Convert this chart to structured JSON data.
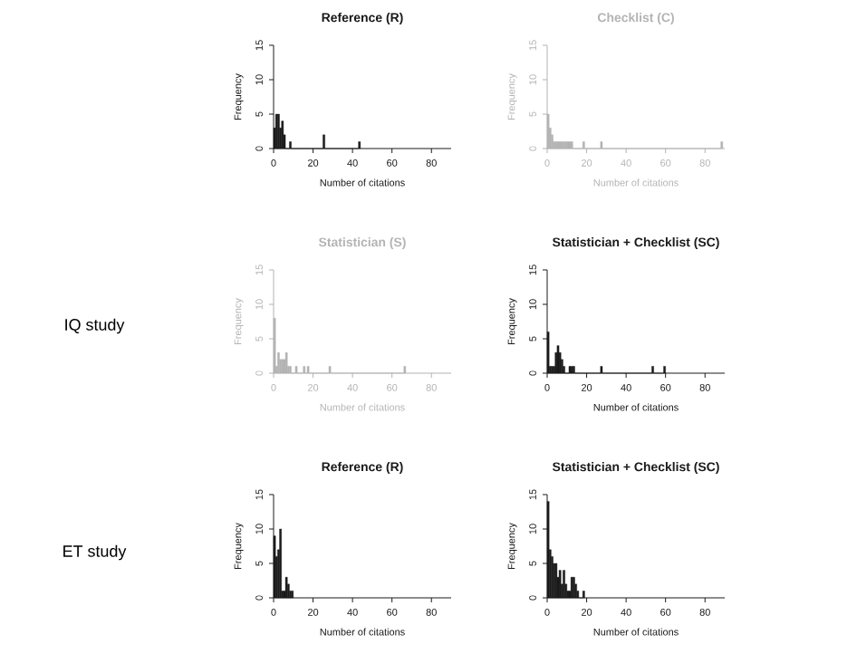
{
  "chart_data": [
    {
      "type": "histogram",
      "title": "Reference (R)",
      "xlabel": "Number of citations",
      "ylabel": "Frequency",
      "color": "#1a1a1a",
      "xlim": [
        0,
        90
      ],
      "xticks": [
        0,
        20,
        40,
        60,
        80
      ],
      "ylim": [
        0,
        15
      ],
      "yticks": [
        0,
        5,
        10,
        15
      ],
      "annotations": [
        "IQ study"
      ],
      "bins": [
        0,
        1,
        2,
        3,
        4,
        5,
        6,
        7,
        8,
        9,
        10,
        11,
        12,
        13,
        14,
        15,
        16,
        17,
        18,
        19,
        20,
        21,
        22,
        23,
        24,
        25,
        26,
        27,
        28,
        29,
        30,
        31,
        32,
        33,
        34,
        35,
        36,
        37,
        38,
        39,
        40,
        41,
        42,
        43,
        44
      ],
      "values": [
        3,
        5,
        5,
        3,
        4,
        2,
        0,
        0,
        1,
        0,
        0,
        0,
        0,
        0,
        0,
        0,
        0,
        0,
        0,
        0,
        0,
        0,
        0,
        0,
        0,
        2,
        0,
        0,
        0,
        0,
        0,
        0,
        0,
        0,
        0,
        0,
        0,
        0,
        0,
        0,
        0,
        0,
        0,
        1
      ]
    },
    {
      "type": "histogram",
      "title": "Checklist (C)",
      "xlabel": "Number of citations",
      "ylabel": "Frequency",
      "color": "#b3b3b3",
      "xlim": [
        0,
        90
      ],
      "xticks": [
        0,
        20,
        40,
        60,
        80
      ],
      "ylim": [
        0,
        15
      ],
      "yticks": [
        0,
        5,
        10,
        15
      ],
      "bins": [
        0,
        1,
        2,
        3,
        4,
        5,
        6,
        7,
        8,
        9,
        10,
        11,
        12,
        13,
        14,
        15,
        16,
        17,
        18,
        19,
        20,
        21,
        22,
        23,
        24,
        25,
        26,
        27,
        28,
        29,
        30,
        31,
        32,
        33,
        34,
        35,
        36,
        37,
        38,
        39,
        40,
        41,
        42,
        43,
        44,
        45,
        46,
        47,
        48,
        49,
        50,
        51,
        52,
        53,
        54,
        55,
        56,
        57,
        58,
        59,
        60,
        61,
        62,
        63,
        64,
        65,
        66,
        67,
        68,
        69,
        70,
        71,
        72,
        73,
        74,
        75,
        76,
        77,
        78,
        79,
        80,
        81,
        82,
        83,
        84,
        85,
        86,
        87,
        88,
        89
      ],
      "values": [
        5,
        3,
        2,
        1,
        1,
        1,
        1,
        1,
        1,
        1,
        1,
        1,
        1,
        0,
        0,
        0,
        0,
        0,
        1,
        0,
        0,
        0,
        0,
        0,
        0,
        0,
        0,
        1,
        0,
        0,
        0,
        0,
        0,
        0,
        0,
        0,
        0,
        0,
        0,
        0,
        0,
        0,
        0,
        0,
        0,
        0,
        0,
        0,
        0,
        0,
        0,
        0,
        0,
        0,
        0,
        0,
        0,
        0,
        0,
        0,
        0,
        0,
        0,
        0,
        0,
        0,
        0,
        0,
        0,
        0,
        0,
        0,
        0,
        0,
        0,
        0,
        0,
        0,
        0,
        0,
        0,
        0,
        0,
        0,
        0,
        0,
        0,
        0,
        1
      ]
    },
    {
      "type": "histogram",
      "title": "Statistician (S)",
      "xlabel": "Number of citations",
      "ylabel": "Frequency",
      "color": "#b3b3b3",
      "xlim": [
        0,
        90
      ],
      "xticks": [
        0,
        20,
        40,
        60,
        80
      ],
      "ylim": [
        0,
        15
      ],
      "yticks": [
        0,
        5,
        10,
        15
      ],
      "bins": [
        0,
        1,
        2,
        3,
        4,
        5,
        6,
        7,
        8,
        9,
        10,
        11,
        12,
        13,
        14,
        15,
        16,
        17,
        18,
        19,
        20,
        21,
        22,
        23,
        24,
        25,
        26,
        27,
        28,
        29,
        30,
        31,
        32,
        33,
        34,
        35,
        36,
        37,
        38,
        39,
        40,
        41,
        42,
        43,
        44,
        45,
        46,
        47,
        48,
        49,
        50,
        51,
        52,
        53,
        54,
        55,
        56,
        57,
        58,
        59,
        60,
        61,
        62,
        63,
        64,
        65,
        66,
        67
      ],
      "values": [
        8,
        1,
        3,
        2,
        2,
        2,
        3,
        1,
        1,
        0,
        0,
        1,
        0,
        0,
        0,
        1,
        0,
        1,
        0,
        0,
        0,
        0,
        0,
        0,
        0,
        0,
        0,
        0,
        1,
        0,
        0,
        0,
        0,
        0,
        0,
        0,
        0,
        0,
        0,
        0,
        0,
        0,
        0,
        0,
        0,
        0,
        0,
        0,
        0,
        0,
        0,
        0,
        0,
        0,
        0,
        0,
        0,
        0,
        0,
        0,
        0,
        0,
        0,
        0,
        0,
        0,
        1
      ]
    },
    {
      "type": "histogram",
      "title": "Statistician + Checklist (SC)",
      "xlabel": "Number of citations",
      "ylabel": "Frequency",
      "color": "#1a1a1a",
      "xlim": [
        0,
        90
      ],
      "xticks": [
        0,
        20,
        40,
        60,
        80
      ],
      "ylim": [
        0,
        15
      ],
      "yticks": [
        0,
        5,
        10,
        15
      ],
      "bins": [
        0,
        1,
        2,
        3,
        4,
        5,
        6,
        7,
        8,
        9,
        10,
        11,
        12,
        13,
        14,
        15,
        16,
        17,
        18,
        19,
        20,
        21,
        22,
        23,
        24,
        25,
        26,
        27,
        28,
        29,
        30,
        31,
        32,
        33,
        34,
        35,
        36,
        37,
        38,
        39,
        40,
        41,
        42,
        43,
        44,
        45,
        46,
        47,
        48,
        49,
        50,
        51,
        52,
        53,
        54,
        55,
        56,
        57,
        58,
        59,
        60
      ],
      "values": [
        6,
        1,
        1,
        1,
        3,
        4,
        3,
        2,
        1,
        0,
        0,
        1,
        1,
        1,
        0,
        0,
        0,
        0,
        0,
        0,
        0,
        0,
        0,
        0,
        0,
        0,
        0,
        1,
        0,
        0,
        0,
        0,
        0,
        0,
        0,
        0,
        0,
        0,
        0,
        0,
        0,
        0,
        0,
        0,
        0,
        0,
        0,
        0,
        0,
        0,
        0,
        0,
        0,
        1,
        0,
        0,
        0,
        0,
        0,
        1
      ]
    },
    {
      "type": "histogram",
      "title": "Reference (R)",
      "xlabel": "Number of citations",
      "ylabel": "Frequency",
      "color": "#1a1a1a",
      "xlim": [
        0,
        90
      ],
      "xticks": [
        0,
        20,
        40,
        60,
        80
      ],
      "ylim": [
        0,
        15
      ],
      "yticks": [
        0,
        5,
        10,
        15
      ],
      "annotations": [
        "ET study"
      ],
      "bins": [
        0,
        1,
        2,
        3,
        4,
        5,
        6,
        7,
        8,
        9,
        10
      ],
      "values": [
        9,
        6,
        7,
        10,
        1,
        1,
        3,
        2,
        1,
        1
      ]
    },
    {
      "type": "histogram",
      "title": "Statistician + Checklist (SC)",
      "xlabel": "Number of citations",
      "ylabel": "Frequency",
      "color": "#1a1a1a",
      "xlim": [
        0,
        90
      ],
      "xticks": [
        0,
        20,
        40,
        60,
        80
      ],
      "ylim": [
        0,
        15
      ],
      "yticks": [
        0,
        5,
        10,
        15
      ],
      "bins": [
        0,
        1,
        2,
        3,
        4,
        5,
        6,
        7,
        8,
        9,
        10,
        11,
        12,
        13,
        14,
        15,
        16,
        17,
        18,
        19
      ],
      "values": [
        14,
        7,
        6,
        5,
        5,
        3,
        4,
        2,
        4,
        2,
        1,
        1,
        3,
        3,
        2,
        1,
        0,
        0,
        1
      ]
    }
  ]
}
